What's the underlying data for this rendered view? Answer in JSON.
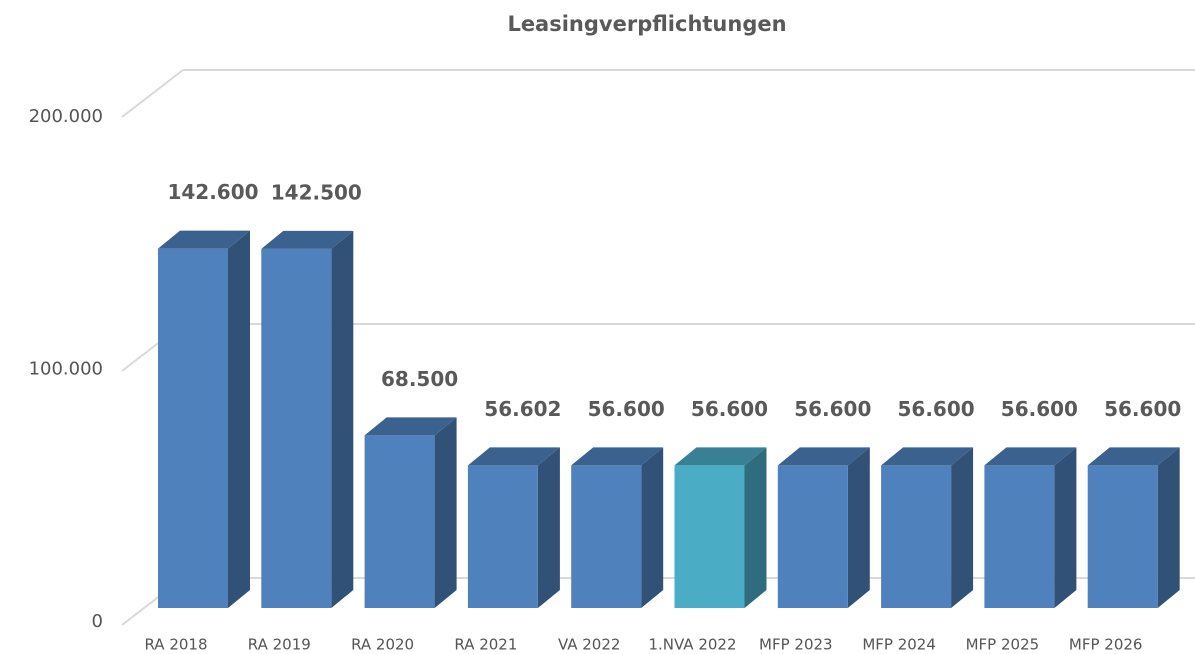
{
  "chart_data": {
    "type": "bar3d",
    "title": "Leasingverpflichtungen",
    "categories": [
      "RA 2018",
      "RA 2019",
      "RA 2020",
      "RA 2021",
      "VA 2022",
      "1.NVA 2022",
      "MFP 2023",
      "MFP 2024",
      "MFP 2025",
      "MFP 2026"
    ],
    "values": [
      142600,
      142500,
      68500,
      56602,
      56600,
      56600,
      56600,
      56600,
      56600,
      56600
    ],
    "value_labels": [
      "142.600",
      "142.500",
      "68.500",
      "56.602",
      "56.600",
      "56.600",
      "56.600",
      "56.600",
      "56.600",
      "56.600"
    ],
    "colors": [
      "#4f81bd",
      "#4f81bd",
      "#4f81bd",
      "#4f81bd",
      "#4f81bd",
      "#4bacc6",
      "#4f81bd",
      "#4f81bd",
      "#4f81bd",
      "#4f81bd"
    ],
    "ylim": [
      0,
      200000
    ],
    "yticks": [
      0,
      {
        "value": 100000,
        "label": "100.000"
      },
      {
        "value": 200000,
        "label": "200.000"
      }
    ],
    "grid": true
  }
}
